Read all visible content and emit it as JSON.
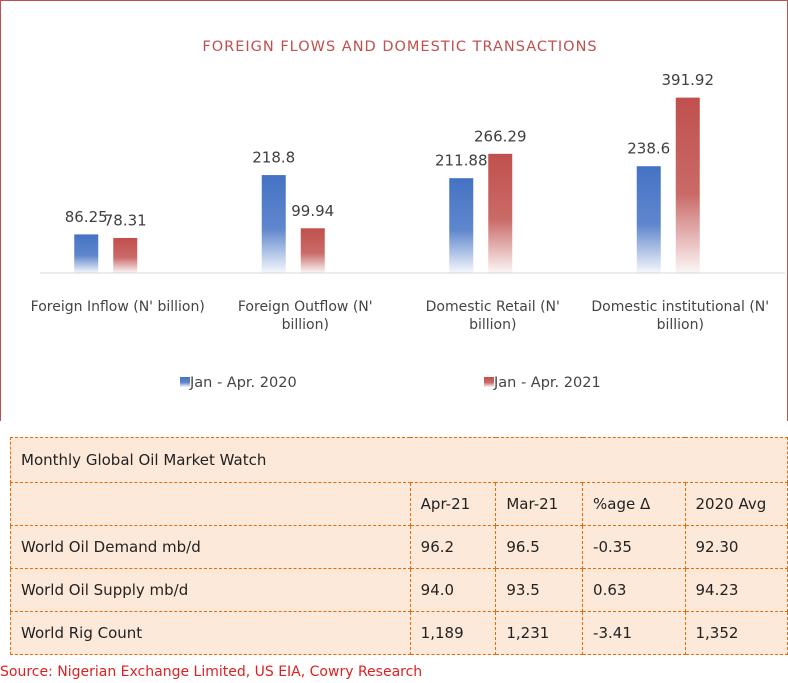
{
  "chart_data": {
    "type": "bar",
    "title": "FOREIGN FLOWS AND DOMESTIC TRANSACTIONS",
    "categories": [
      "Foreign Inflow (N' billion)",
      "Foreign Outflow (N' billion)",
      "Domestic Retail (N' billion)",
      "Domestic institutional (N' billion)"
    ],
    "series": [
      {
        "name": "Jan - Apr. 2020",
        "color": "#4472c4",
        "values": [
          86.25,
          218.8,
          211.88,
          238.6
        ]
      },
      {
        "name": "Jan - Apr. 2021",
        "color": "#c0504d",
        "values": [
          78.31,
          99.94,
          266.29,
          391.92
        ]
      }
    ],
    "ylim": [
      0,
      400
    ],
    "legend": "bottom"
  },
  "table": {
    "title": "Monthly Global Oil Market Watch",
    "columns": [
      "Apr-21",
      "Mar-21",
      "%age Δ",
      "2020 Avg"
    ],
    "rows": [
      [
        "World Oil Demand mb/d",
        "96.2",
        "96.5",
        "-0.35",
        "92.30"
      ],
      [
        "World Oil Supply mb/d",
        "94.0",
        "93.5",
        "0.63",
        "94.23"
      ],
      [
        "World Rig Count",
        "1,189",
        "1,231",
        "-3.41",
        "1,352"
      ]
    ]
  },
  "source": "Source: Nigerian Exchange Limited, US EIA, Cowry Research"
}
